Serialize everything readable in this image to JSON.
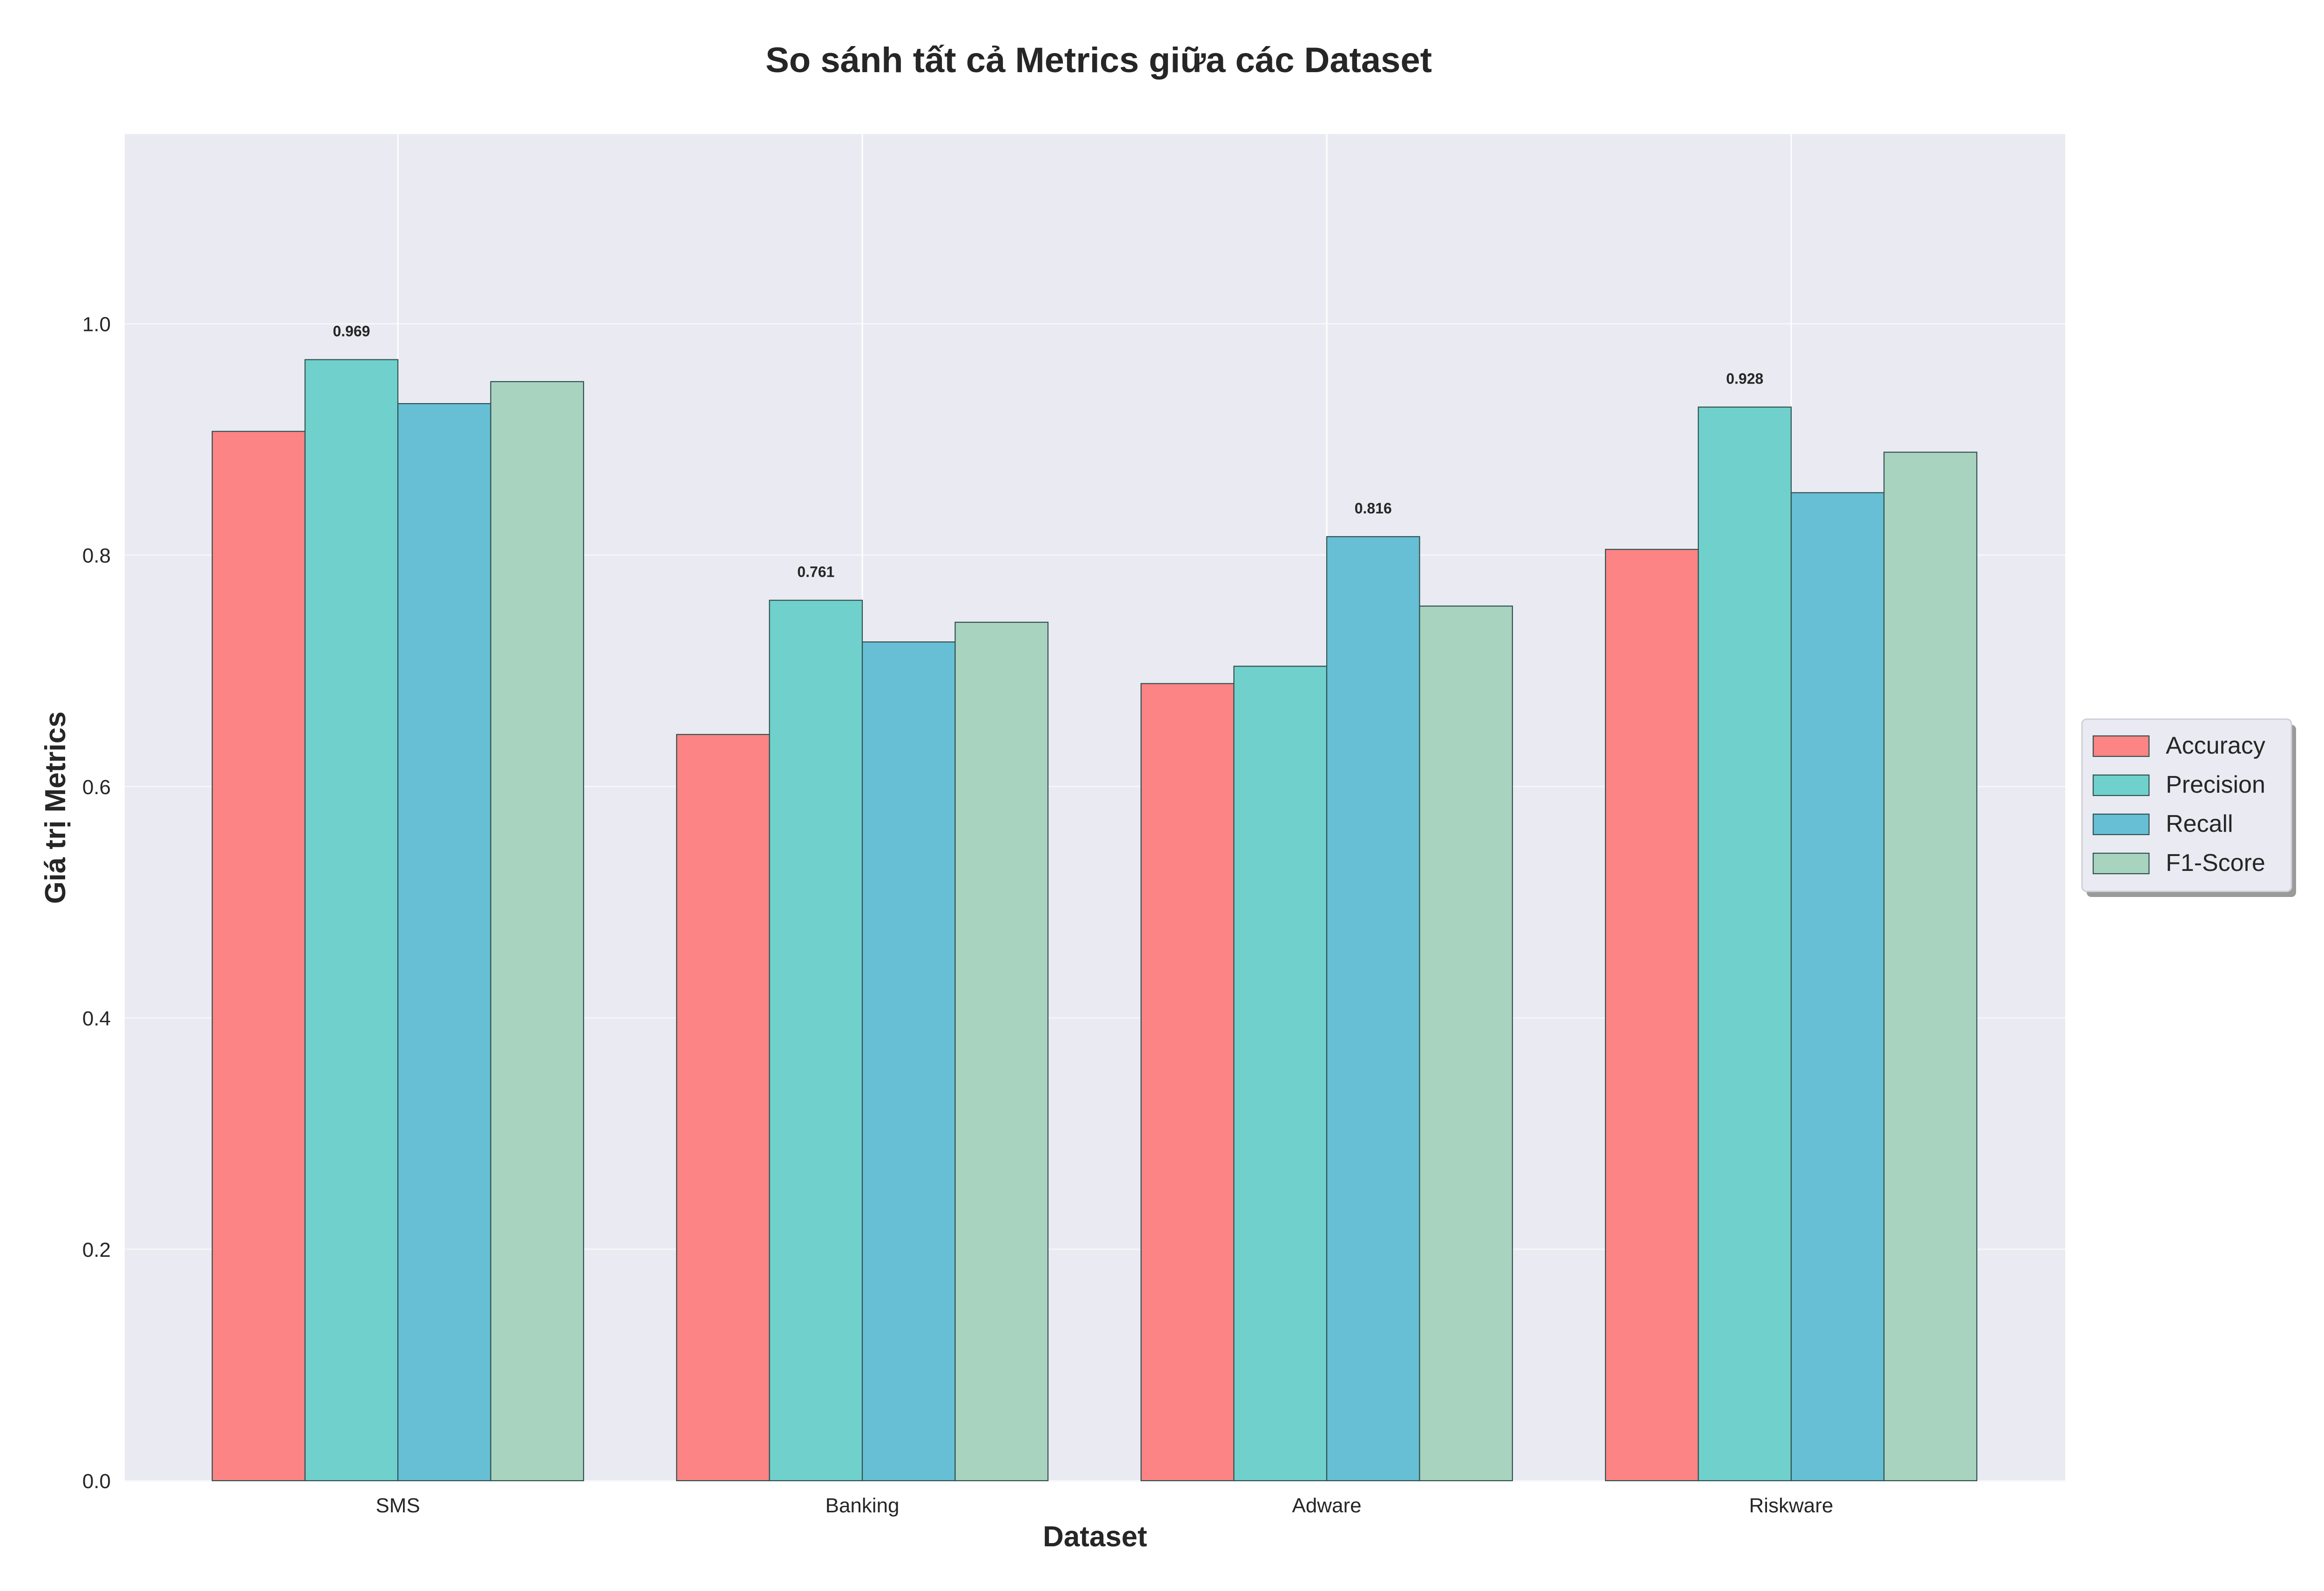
{
  "chart_data": {
    "type": "bar",
    "title": "So sánh tất cả Metrics giữa các Dataset",
    "xlabel": "Dataset",
    "ylabel": "Giá trị Metrics",
    "categories": [
      "SMS",
      "Banking",
      "Adware",
      "Riskware"
    ],
    "series": [
      {
        "name": "Accuracy",
        "color": "#FC8484",
        "values": [
          0.907,
          0.645,
          0.689,
          0.805
        ]
      },
      {
        "name": "Precision",
        "color": "#70D1CC",
        "values": [
          0.969,
          0.761,
          0.704,
          0.928
        ]
      },
      {
        "name": "Recall",
        "color": "#66BFD5",
        "values": [
          0.931,
          0.725,
          0.816,
          0.854
        ]
      },
      {
        "name": "F1-Score",
        "color": "#A8D3BF",
        "values": [
          0.95,
          0.742,
          0.756,
          0.889
        ]
      }
    ],
    "ylim": [
      0,
      1.164
    ],
    "yticks": [
      "0.0",
      "0.2",
      "0.4",
      "0.6",
      "0.8",
      "1.0"
    ],
    "annotations": [
      {
        "category": "SMS",
        "series": "Precision",
        "text": "0.969"
      },
      {
        "category": "Banking",
        "series": "Precision",
        "text": "0.761"
      },
      {
        "category": "Adware",
        "series": "Recall",
        "text": "0.816"
      },
      {
        "category": "Riskware",
        "series": "Precision",
        "text": "0.928"
      }
    ],
    "grid": true,
    "legend_position": "right"
  }
}
